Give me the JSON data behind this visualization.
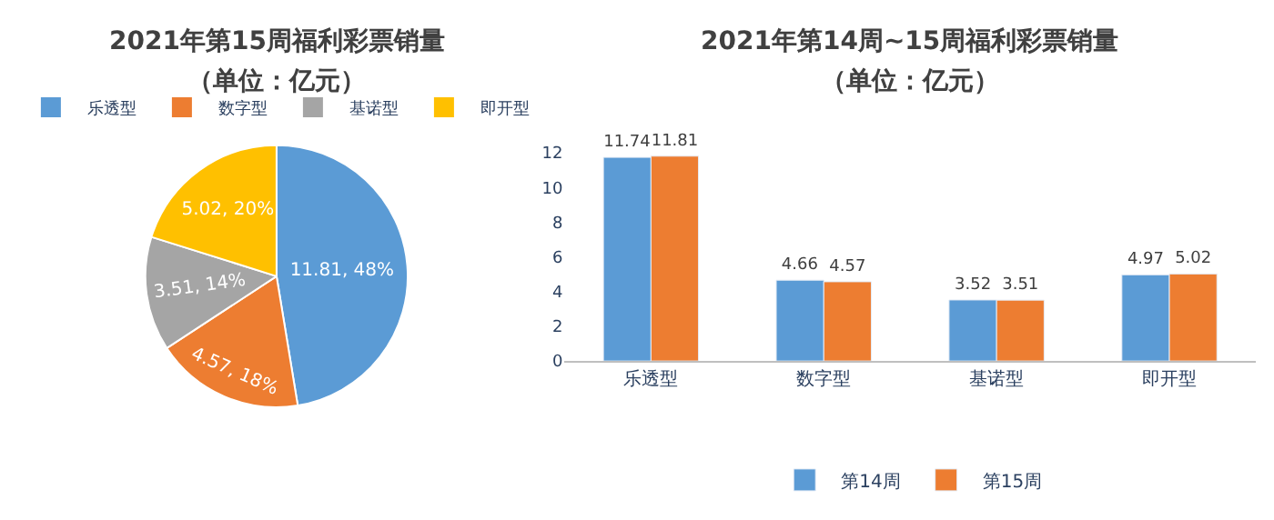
{
  "chart_data": [
    {
      "type": "pie",
      "title": "2021年第15周福利彩票销量",
      "subtitle": "（单位：亿元）",
      "categories": [
        "乐透型",
        "数字型",
        "基诺型",
        "即开型"
      ],
      "values": [
        11.81,
        4.57,
        3.51,
        5.02
      ],
      "colors": [
        "#5b9bd5",
        "#ed7d31",
        "#a5a5a5",
        "#ffc000"
      ],
      "value_labels": [
        "11.81, 48%",
        "4.57, 18%",
        "3.51, 14%",
        "5.02, 20%"
      ],
      "legend": "top"
    },
    {
      "type": "bar",
      "title": "2021年第14周~15周福利彩票销量",
      "subtitle": "（单位：亿元）",
      "categories": [
        "乐透型",
        "数字型",
        "基诺型",
        "即开型"
      ],
      "series": [
        {
          "name": "第14周",
          "color": "#5b9bd5",
          "values": [
            11.74,
            4.66,
            3.52,
            4.97
          ]
        },
        {
          "name": "第15周",
          "color": "#ed7d31",
          "values": [
            11.81,
            4.57,
            3.51,
            5.02
          ]
        }
      ],
      "ylim": [
        0,
        12
      ],
      "yticks": [
        0,
        2,
        4,
        6,
        8,
        10,
        12
      ],
      "data_labels": true,
      "grid": false,
      "legend": "bottom"
    }
  ]
}
